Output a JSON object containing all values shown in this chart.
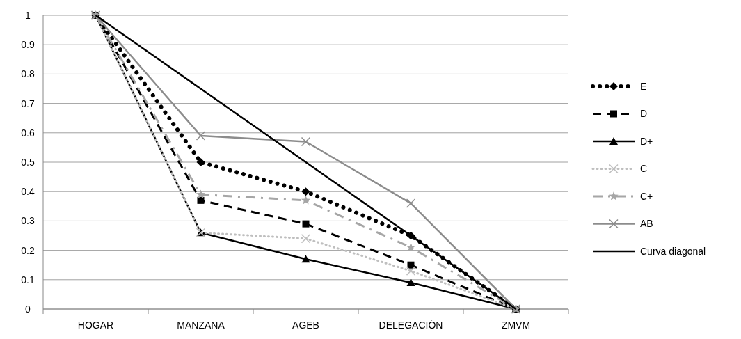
{
  "chart_data": {
    "type": "line",
    "categories": [
      "HOGAR",
      "MANZANA",
      "AGEB",
      "DELEGACIÓN",
      "ZMVM"
    ],
    "ylim": [
      0,
      1
    ],
    "yticks": [
      0,
      0.1,
      0.2,
      0.3,
      0.4,
      0.5,
      0.6,
      0.7,
      0.8,
      0.9,
      1
    ],
    "grid": "y",
    "legend": "right",
    "series": [
      {
        "name": "E",
        "color": "#000000",
        "values": [
          1,
          0.5,
          0.4,
          0.25,
          0
        ],
        "marker": "diamond",
        "line_style": "dotted"
      },
      {
        "name": "D",
        "color": "#000000",
        "values": [
          1,
          0.37,
          0.29,
          0.15,
          0
        ],
        "marker": "square",
        "line_style": "dashed"
      },
      {
        "name": "D+",
        "color": "#000000",
        "values": [
          1,
          0.26,
          0.17,
          0.09,
          0
        ],
        "marker": "triangle",
        "line_style": "solid"
      },
      {
        "name": "C",
        "color": "#bfbfbf",
        "values": [
          1,
          0.26,
          0.24,
          0.13,
          0
        ],
        "marker": "cross",
        "line_style": "dotted"
      },
      {
        "name": "C+",
        "color": "#a6a6a6",
        "values": [
          1,
          0.39,
          0.37,
          0.21,
          0
        ],
        "marker": "star",
        "line_style": "dashed"
      },
      {
        "name": "AB",
        "color": "#8c8c8c",
        "values": [
          1,
          0.59,
          0.57,
          0.36,
          0
        ],
        "marker": "cross",
        "line_style": "solid"
      },
      {
        "name": "Curva diagonal",
        "color": "#000000",
        "values": [
          1,
          0.75,
          0.5,
          0.25,
          0
        ],
        "marker": "none",
        "line_style": "solid"
      }
    ]
  }
}
